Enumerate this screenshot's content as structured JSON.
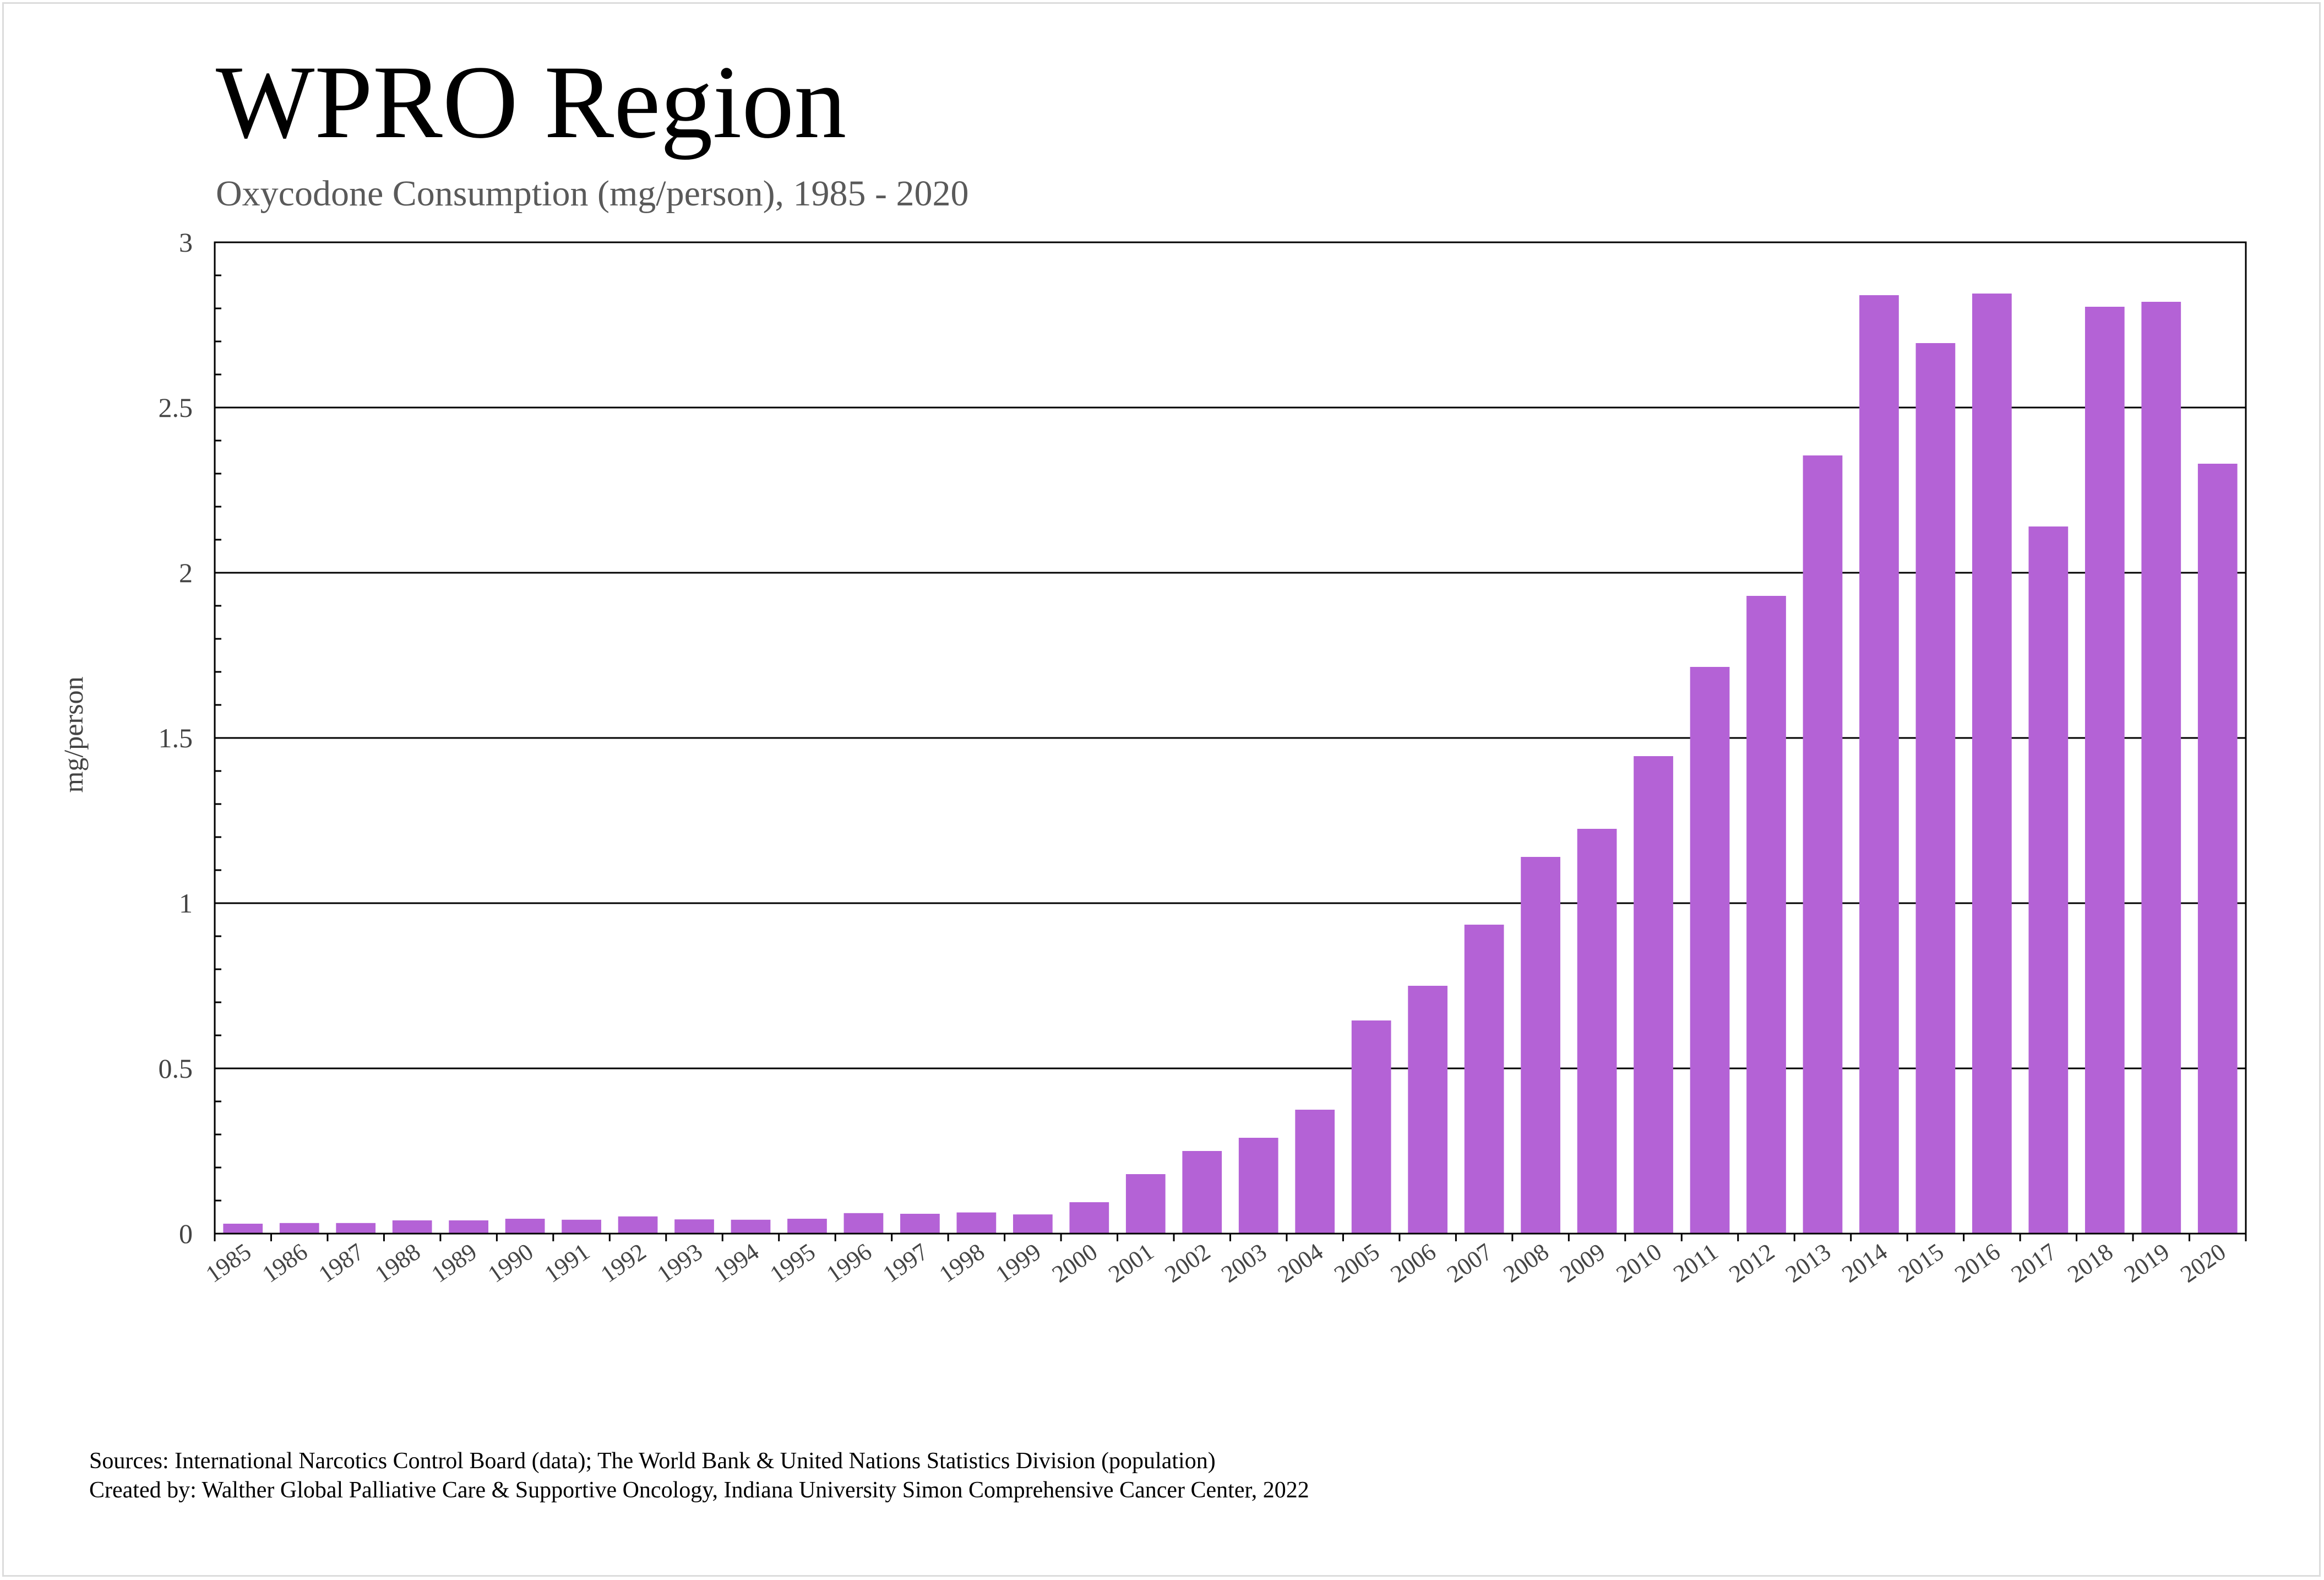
{
  "title": "WPRO Region",
  "subtitle": "Oxycodone Consumption (mg/person), 1985 - 2020",
  "footer": {
    "sources": "Sources: International Narcotics Control Board (data); The World Bank & United Nations Statistics Division (population)",
    "created_by": "Created by: Walther Global Palliative Care & Supportive Oncology, Indiana University Simon Comprehensive Cancer Center, 2022"
  },
  "chart_data": {
    "type": "bar",
    "title": "WPRO Region",
    "subtitle": "Oxycodone Consumption (mg/person), 1985 - 2020",
    "xlabel": "",
    "ylabel": "mg/person",
    "ylim": [
      0,
      3
    ],
    "yticks": [
      "0",
      "0.5",
      "1",
      "1.5",
      "2",
      "2.5",
      "3"
    ],
    "grid": "horizontal",
    "bar_color": "#b462d6",
    "categories": [
      "1985",
      "1986",
      "1987",
      "1988",
      "1989",
      "1990",
      "1991",
      "1992",
      "1993",
      "1994",
      "1995",
      "1996",
      "1997",
      "1998",
      "1999",
      "2000",
      "2001",
      "2002",
      "2003",
      "2004",
      "2005",
      "2006",
      "2007",
      "2008",
      "2009",
      "2010",
      "2011",
      "2012",
      "2013",
      "2014",
      "2015",
      "2016",
      "2017",
      "2018",
      "2019",
      "2020"
    ],
    "values": [
      0.03,
      0.032,
      0.032,
      0.04,
      0.04,
      0.045,
      0.042,
      0.052,
      0.043,
      0.042,
      0.045,
      0.062,
      0.06,
      0.064,
      0.058,
      0.095,
      0.18,
      0.25,
      0.29,
      0.375,
      0.645,
      0.75,
      0.935,
      1.14,
      1.225,
      1.445,
      1.715,
      1.93,
      2.355,
      2.84,
      2.695,
      2.845,
      2.14,
      2.805,
      2.82,
      2.33
    ]
  }
}
